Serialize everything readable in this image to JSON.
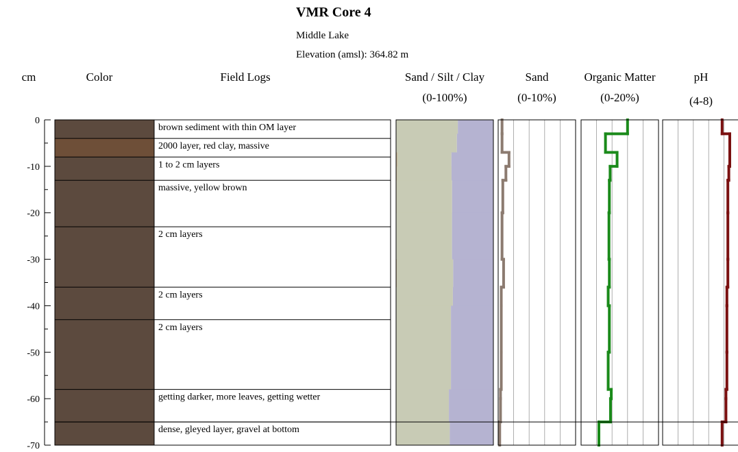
{
  "chart_data": {
    "type": "core-log",
    "title": "VMR Core  4",
    "subtitle": "Middle Lake",
    "elevation": "Elevation (amsl): 364.82 m",
    "depth_axis": {
      "label": "cm",
      "ylim": [
        0,
        -70
      ],
      "yticks": [
        0,
        -10,
        -20,
        -30,
        -40,
        -50,
        -60,
        -70
      ],
      "minor_ticks": [
        -5,
        -15,
        -25,
        -35,
        -45,
        -55,
        -65
      ]
    },
    "layers": {
      "color_label": "Color",
      "notes_label": "Field Logs",
      "tops": [
        0,
        -4,
        -8,
        -13,
        -23,
        -36,
        -43,
        -58,
        -65
      ],
      "bottoms": [
        -4,
        -8,
        -13,
        -23,
        -36,
        -43,
        -58,
        -65,
        -70
      ],
      "colors": [
        "#5c4a3e",
        "#6e4f38",
        "#5c4a3e",
        "#5c4a3e",
        "#5c4a3e",
        "#5c4a3e",
        "#5c4a3e",
        "#5c4a3e",
        "#5c4a3e"
      ],
      "notes": [
        "brown sediment with thin OM layer",
        "2000 layer, red clay, massive",
        "1 to 2 cm layers",
        "massive, yellow brown",
        "2 cm layers",
        "2 cm layers",
        "2 cm layers",
        "getting darker, more leaves, getting wetter",
        "dense, gleyed layer, gravel at bottom"
      ]
    },
    "samples": {
      "tops": [
        0,
        -3,
        -7,
        -10,
        -13,
        -20,
        -30,
        -36,
        -40,
        -50,
        -58,
        -60,
        -65
      ],
      "bottoms": [
        -3,
        -7,
        -10,
        -13,
        -20,
        -30,
        -36,
        -40,
        -50,
        -58,
        -60,
        -65,
        -70
      ]
    },
    "panels": [
      {
        "type": "stacked",
        "title": "Sand / Silt / Clay",
        "range_label": "(0-100%)",
        "xlim": [
          0,
          100
        ],
        "series": [
          {
            "color": "#c9b99a",
            "values": [
              0.5,
              0.5,
              1.4,
              1.0,
              0.6,
              0.5,
              0.7,
              0.4,
              0.4,
              0.4,
              0.3,
              0.3,
              0.2
            ]
          },
          {
            "color": "#c8cbb5",
            "values": [
              63,
              62,
              55.5,
              56,
              57,
              57,
              58,
              58,
              56,
              56,
              54,
              54,
              55
            ]
          },
          {
            "color": "#b5b3d1",
            "values": [
              36.5,
              37.5,
              43.1,
              43,
              42.4,
              42.5,
              41.3,
              41.6,
              43.6,
              43.6,
              45.7,
              45.7,
              44.8
            ]
          }
        ]
      },
      {
        "type": "step",
        "title": "Sand",
        "range_label": "(0-10%)",
        "xlim": [
          0,
          10
        ],
        "xticks": [
          0,
          2,
          4,
          6,
          8,
          10
        ],
        "grid": true,
        "color": "#8c7b70",
        "values": [
          0.5,
          0.5,
          1.4,
          1.0,
          0.6,
          0.5,
          0.7,
          0.4,
          0.4,
          0.4,
          0.3,
          0.3,
          0.2
        ]
      },
      {
        "type": "step",
        "title": "Organic Matter",
        "range_label": "(0-20%)",
        "xlim": [
          0,
          20
        ],
        "xticks": [
          0,
          4,
          8,
          12,
          16,
          20
        ],
        "grid": true,
        "color": "#1a8a1a",
        "values": [
          12,
          6.3,
          9.3,
          7.5,
          7.3,
          7.2,
          7.3,
          7.0,
          7.3,
          7.0,
          7.8,
          7.6,
          4.6
        ]
      },
      {
        "type": "step",
        "title": "pH",
        "range_label": "(4-8)",
        "xlim": [
          4,
          8
        ],
        "xticks": [
          4,
          4.8,
          5.6,
          6.4,
          7.2,
          8
        ],
        "grid": true,
        "color": "#7a1010",
        "values": [
          7.1,
          7.5,
          7.5,
          7.45,
          7.4,
          7.4,
          7.4,
          7.35,
          7.35,
          7.35,
          7.3,
          7.3,
          7.1
        ]
      }
    ]
  }
}
